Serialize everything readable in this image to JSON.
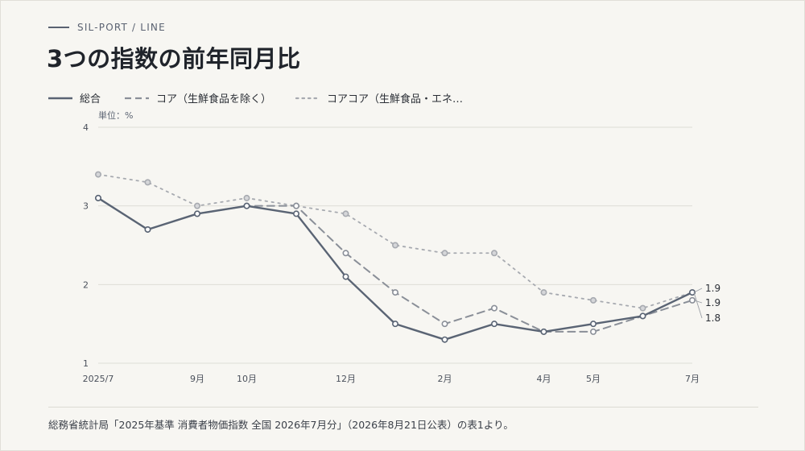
{
  "eyebrow": "SIL-PORT / LINE",
  "title": "3つの指数の前年同月比",
  "unit_label": "単位：%",
  "source": "総務省統計局「2025年基準 消費者物価指数 全国 2026年7月分」（2026年8月21日公表）の表1より。",
  "colors": {
    "background": "#f7f6f2",
    "series_total": "#5a6474",
    "series_core": "#8a8f98",
    "series_corecore": "#a7aab0",
    "grid": "#deddd6"
  },
  "chart_data": {
    "type": "line",
    "title": "3つの指数の前年同月比",
    "ylabel": "単位：%",
    "xlabel": "",
    "ylim": [
      1,
      4
    ],
    "yticks": [
      1,
      2,
      3,
      4
    ],
    "grid": true,
    "legend_position": "top-left",
    "x_periods": [
      "2025/7",
      "2025/8",
      "2025/9",
      "2025/10",
      "2025/11",
      "2025/12",
      "2026/1",
      "2026/2",
      "2026/3",
      "2026/4",
      "2026/5",
      "2026/6",
      "2026/7"
    ],
    "x_tick_labels": [
      "2025/7",
      "",
      "9月",
      "10月",
      "",
      "12月",
      "",
      "2月",
      "",
      "4月",
      "5月",
      "",
      "7月"
    ],
    "series": [
      {
        "name": "総合",
        "style": "solid",
        "values": [
          3.1,
          2.7,
          2.9,
          3.0,
          2.9,
          2.1,
          1.5,
          1.3,
          1.5,
          1.4,
          1.5,
          1.6,
          1.9
        ]
      },
      {
        "name": "コア（生鮮食品を除く）",
        "style": "dashed",
        "values": [
          3.1,
          2.7,
          2.9,
          3.0,
          3.0,
          2.4,
          1.9,
          1.5,
          1.7,
          1.4,
          1.4,
          1.6,
          1.8
        ]
      },
      {
        "name": "コアコア（生鮮食品・エネ…",
        "style": "dotted",
        "values": [
          3.4,
          3.3,
          3.0,
          3.1,
          3.0,
          2.9,
          2.5,
          2.4,
          2.4,
          1.9,
          1.8,
          1.7,
          1.9
        ]
      }
    ],
    "end_labels": [
      "1.9",
      "1.9",
      "1.8"
    ]
  }
}
